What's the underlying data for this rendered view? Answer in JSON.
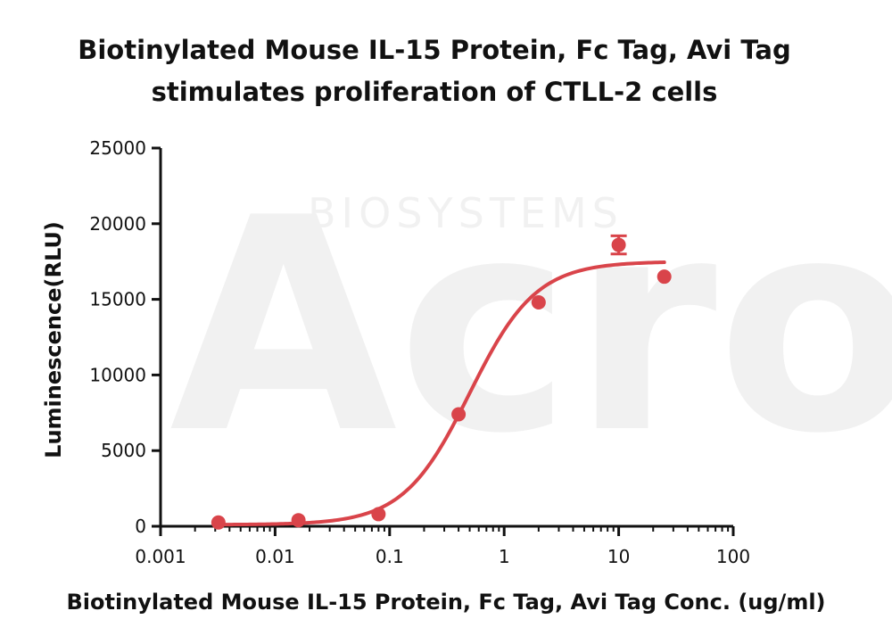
{
  "chart_data": {
    "type": "scatter",
    "title": [
      "Biotinylated Mouse IL-15 Protein, Fc Tag, Avi Tag",
      "stimulates proliferation of CTLL-2 cells"
    ],
    "xlabel": "Biotinylated Mouse IL-15 Protein, Fc Tag, Avi Tag Conc. (ug/ml)",
    "ylabel": "Luminescence(RLU)",
    "x_scale": "log",
    "xlim": [
      0.001,
      100
    ],
    "ylim": [
      0,
      25000
    ],
    "x_ticks": [
      0.001,
      0.01,
      0.1,
      1,
      10,
      100
    ],
    "x_tick_labels": [
      "0.001",
      "0.01",
      "0.1",
      "1",
      "10",
      "100"
    ],
    "y_ticks": [
      0,
      5000,
      10000,
      15000,
      20000,
      25000
    ],
    "y_tick_labels": [
      "0",
      "5000",
      "10000",
      "15000",
      "20000",
      "25000"
    ],
    "grid": false,
    "color": "#d9444a",
    "points": [
      {
        "x": 0.0032,
        "y": 250,
        "err": 0
      },
      {
        "x": 0.016,
        "y": 400,
        "err": 0
      },
      {
        "x": 0.08,
        "y": 800,
        "err": 0
      },
      {
        "x": 0.4,
        "y": 7400,
        "err": 0
      },
      {
        "x": 2,
        "y": 14800,
        "err": 0
      },
      {
        "x": 10,
        "y": 18600,
        "err": 600
      },
      {
        "x": 25,
        "y": 16500,
        "err": 0
      }
    ],
    "fit": {
      "model": "4PL",
      "bottom": 100,
      "top": 17500,
      "ec50": 0.5,
      "hill": 1.5,
      "x_range": [
        0.0032,
        25
      ]
    }
  },
  "watermark": {
    "brand": "Acro",
    "sub": "BIOSYSTEMS"
  }
}
